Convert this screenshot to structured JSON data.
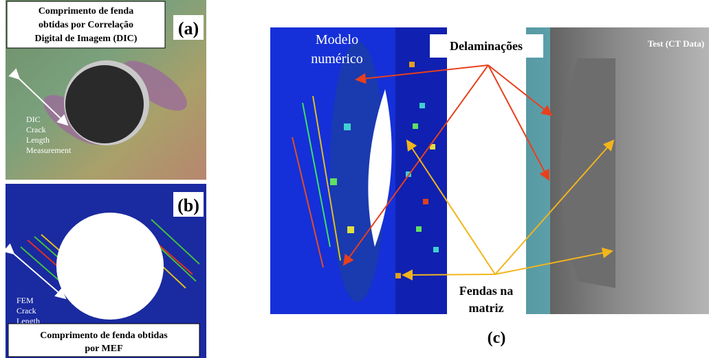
{
  "panel_a": {
    "label": "(a)",
    "caption_lines": [
      "Comprimento de fenda",
      "obtidas por Correlação",
      "Digital de Imagem (DIC)"
    ],
    "annotation_lines": [
      "DIC",
      "Crack",
      "Length",
      "Measurement"
    ]
  },
  "panel_b": {
    "label": "(b)",
    "annotation_lines": [
      "FEM",
      "Crack",
      "Length"
    ],
    "caption_lines": [
      "Comprimento de fenda obtidas",
      "por MEF"
    ]
  },
  "panel_c": {
    "label": "(c)",
    "model_label_lines": [
      "Modelo",
      "numérico"
    ],
    "delamination_label": "Delaminações",
    "test_label": "Test (CT Data)",
    "matrix_crack_label_lines": [
      "Fendas na",
      "matriz"
    ]
  }
}
